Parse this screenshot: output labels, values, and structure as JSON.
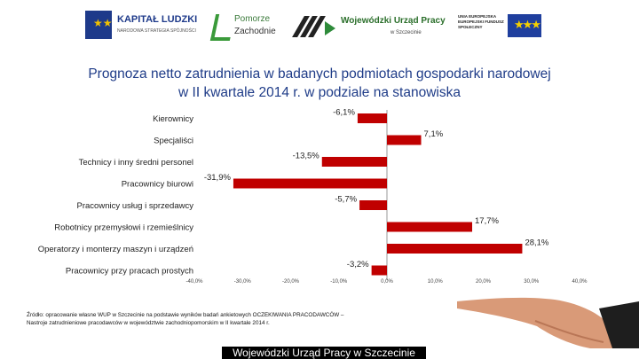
{
  "logos": {
    "kapital": {
      "name": "KAPITAŁ LUDZKI",
      "sub": "NARODOWA STRATEGIA SPÓJNOŚCI"
    },
    "pomorze": {
      "line1": "Pomorze",
      "line2": "Zachodnie"
    },
    "wup": {
      "line1": "Wojewódzki Urząd Pracy",
      "line2": "w Szczecinie"
    },
    "eu": {
      "text": "UNIA EUROPEJSKA EUROPEJSKI FUNDUSZ SPOŁECZNY",
      "flag_icon": "eu-flag-icon"
    }
  },
  "title": {
    "line1": "Prognoza netto zatrudnienia w badanych podmiotach gospodarki narodowej",
    "line2": "w II kwartale 2014 r. w podziale na stanowiska"
  },
  "chart_data": {
    "type": "bar",
    "orientation": "horizontal",
    "categories": [
      "Kierownicy",
      "Specjaliści",
      "Technicy i inny średni personel",
      "Pracownicy biurowi",
      "Pracownicy usług i sprzedawcy",
      "Robotnicy przemysłowi i rzemieślnicy",
      "Operatorzy i monterzy maszyn i urządzeń",
      "Pracownicy przy pracach prostych"
    ],
    "values": [
      -6.1,
      7.1,
      -13.5,
      -31.9,
      -5.7,
      17.7,
      28.1,
      -3.2
    ],
    "value_labels": [
      "-6,1%",
      "7,1%",
      "-13,5%",
      "-31,9%",
      "-5,7%",
      "17,7%",
      "28,1%",
      "-3,2%"
    ],
    "xlim": [
      -40,
      40
    ],
    "x_ticks": [
      "-40,0%",
      "-30,0%",
      "-20,0%",
      "-10,0%",
      "0,0%",
      "10,0%",
      "20,0%",
      "30,0%",
      "40,0%"
    ],
    "bar_color": "#c00000",
    "grid": false,
    "legend": "none"
  },
  "source": "Źródło: opracowanie własne WUP w Szczecinie na podstawie wyników badań ankietowych OCZEKIWANIA PRACODAWCÓW – Nastroje zatrudnieniowe pracodawców w województwie zachodniopomorskim w II kwartale 2014 r.",
  "footer": {
    "text": "Wojewódzki Urząd Pracy w Szczecinie",
    "bg_color": "#000000"
  }
}
